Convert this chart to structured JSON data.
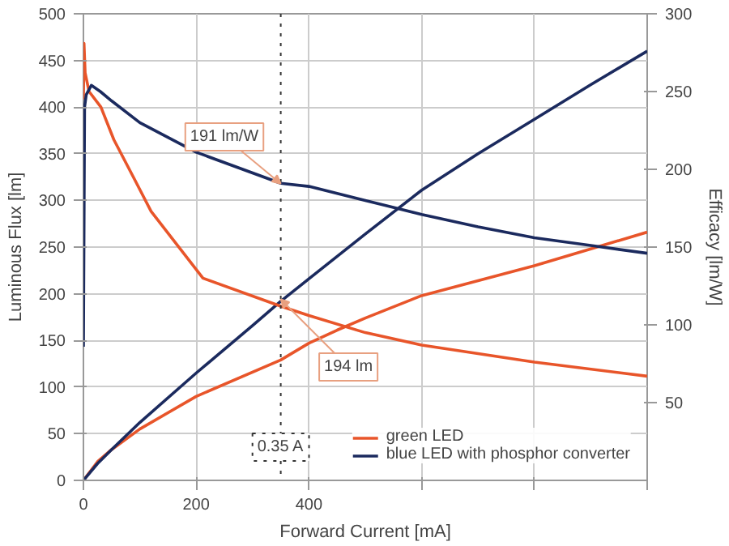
{
  "chart_data": {
    "type": "line",
    "xlabel": "Forward Current [mA]",
    "ylabel": "Luminous Flux [lm]",
    "y2label": "Efficacy [lm/W]",
    "xlim": [
      0,
      1000
    ],
    "xticks": [
      0,
      200,
      400,
      {
        "value": 600,
        "label": null
      },
      {
        "value": 800,
        "label": null
      },
      {
        "value": 1000,
        "label": null
      }
    ],
    "ylim": [
      0,
      500
    ],
    "yticks": [
      0,
      50,
      100,
      150,
      200,
      250,
      300,
      350,
      400,
      450,
      500
    ],
    "y2lim": [
      0,
      300
    ],
    "y2ticks": [
      50,
      100,
      150,
      200,
      250,
      300
    ],
    "grid": true,
    "legend": "bottom right",
    "line_style": "solid",
    "marker": "none",
    "series": [
      {
        "name": "green LED",
        "color": "#e8552a",
        "x": [
          0,
          25,
          50,
          100,
          200,
          350,
          400,
          450,
          500,
          600,
          700,
          800,
          900,
          1000
        ],
        "values": [
          0,
          20,
          33,
          55,
          90,
          129,
          147,
          161,
          174,
          198,
          214,
          230,
          248,
          266
        ]
      },
      {
        "name": "blue LED with phosphor converter",
        "color": "#1b2a5e",
        "x": [
          0,
          25,
          50,
          100,
          200,
          300,
          350,
          400,
          500,
          600,
          700,
          800,
          900,
          1000
        ],
        "values": [
          0,
          18,
          33,
          62,
          115,
          166,
          192,
          216,
          264,
          311,
          350,
          387,
          424,
          460
        ]
      },
      {
        "color": "#e8552a",
        "axis": "y2",
        "x": [
          0,
          1,
          3,
          10,
          31,
          54,
          90,
          120,
          212,
          350,
          400,
          500,
          600,
          800,
          1000
        ],
        "values": [
          245,
          281,
          262,
          250,
          240,
          219,
          194,
          173,
          130,
          112,
          106,
          95,
          87,
          76,
          67
        ]
      },
      {
        "color": "#1b2a5e",
        "axis": "y2",
        "x": [
          0,
          2,
          5,
          14,
          30,
          50,
          100,
          200,
          350,
          400,
          500,
          600,
          700,
          800,
          900,
          1000
        ],
        "values": [
          86,
          240,
          248,
          254,
          250,
          244,
          230,
          211,
          191,
          189,
          180,
          171,
          163,
          156,
          151,
          146
        ]
      }
    ],
    "ref_lines": [
      {
        "axis": "x",
        "value": 350,
        "label": "0.35 A",
        "line_style": "dotted",
        "color": "#333333"
      }
    ],
    "annotations": [
      {
        "text": "191 lm/W",
        "x": 350,
        "y": 318
      },
      {
        "text": "194 lm",
        "x": 350,
        "y": 194
      }
    ]
  }
}
